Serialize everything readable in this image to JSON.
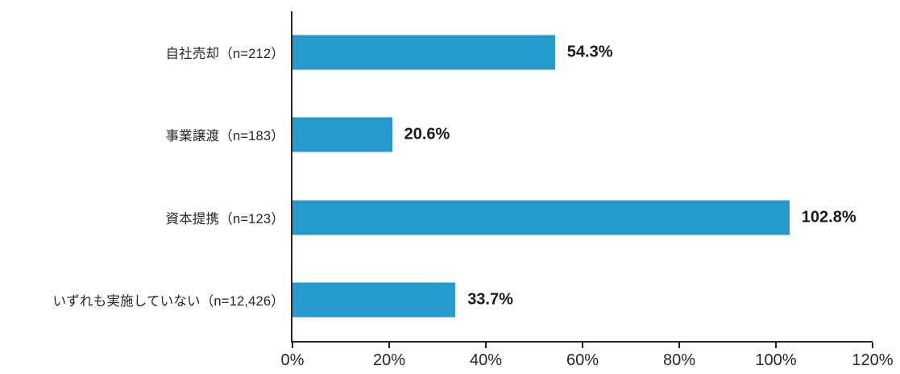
{
  "chart_data": {
    "type": "bar",
    "orientation": "horizontal",
    "title": "",
    "xlabel": "",
    "ylabel": "",
    "categories": [
      "自社売却（n=212）",
      "事業譲渡（n=183）",
      "資本提携（n=123）",
      "いずれも実施していない（n=12,426）"
    ],
    "values": [
      54.3,
      20.6,
      102.8,
      33.7
    ],
    "value_labels": [
      "54.3%",
      "20.6%",
      "102.8%",
      "33.7%"
    ],
    "xlim": [
      0,
      120
    ],
    "x_tick_values": [
      0,
      20,
      40,
      60,
      80,
      100,
      120
    ],
    "x_tick_labels": [
      "0%",
      "20%",
      "40%",
      "60%",
      "80%",
      "100%",
      "120%"
    ],
    "grid": false,
    "legend": false,
    "bar_color": "#2699CE",
    "axis_color": "#262626",
    "category_label_color": "#262626",
    "value_label_color": "#1a1a1a",
    "tick_label_color": "#262626",
    "background_color": "#ffffff"
  }
}
